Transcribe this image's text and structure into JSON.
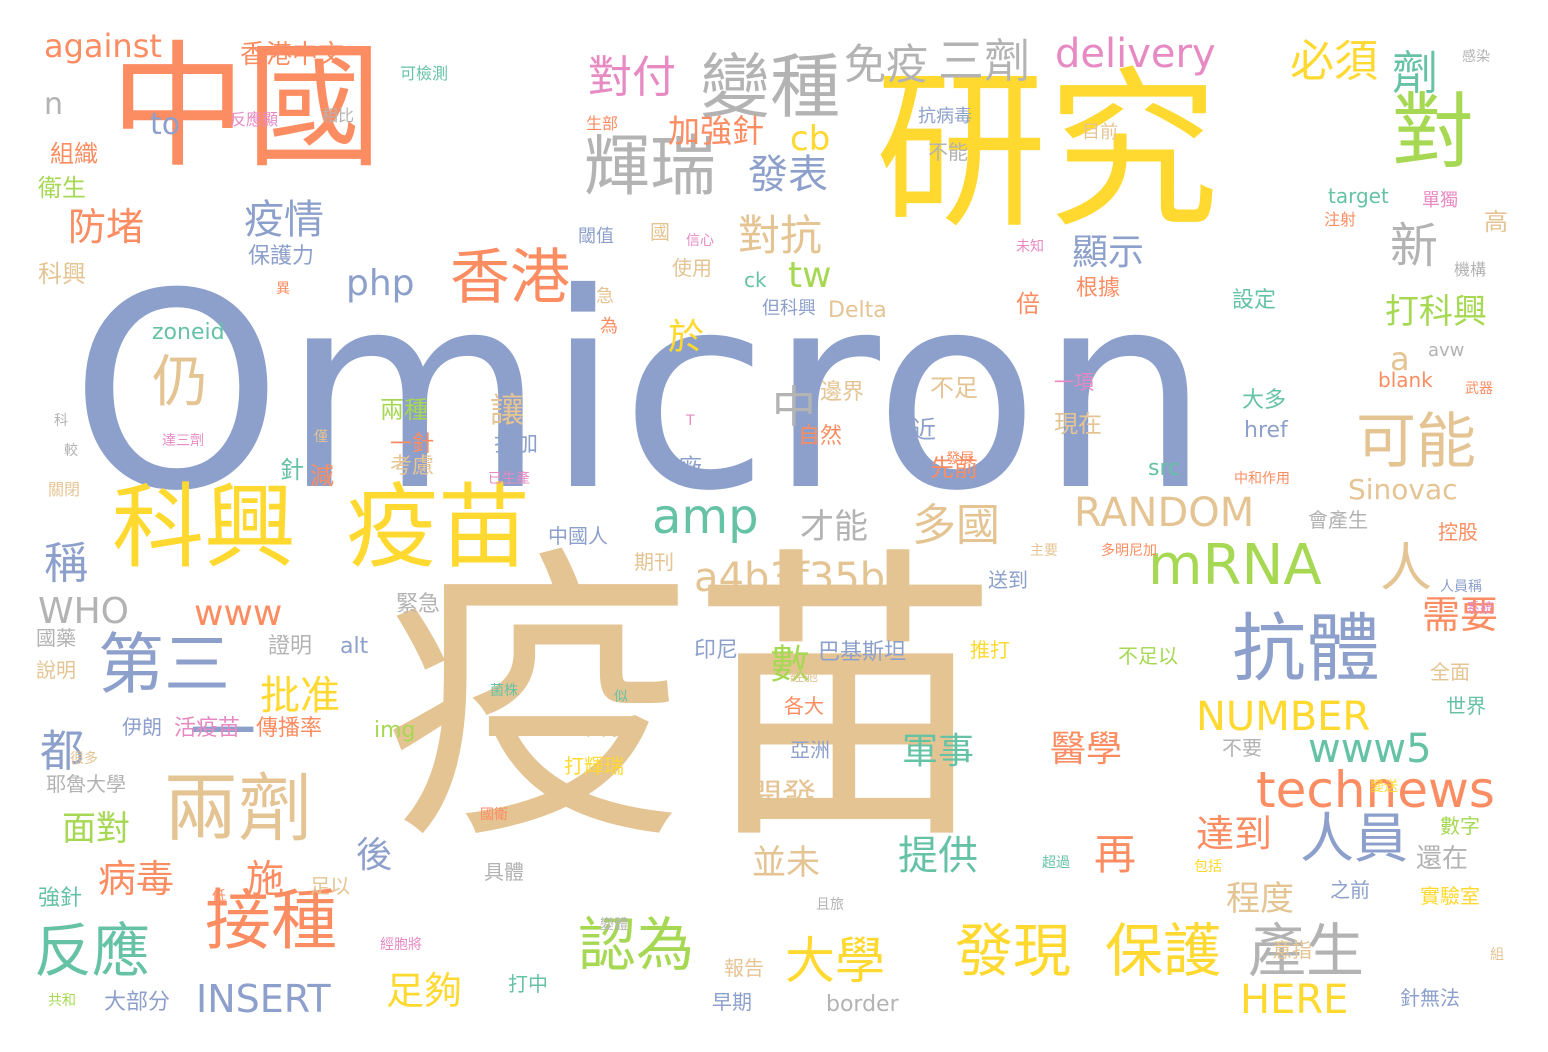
{
  "palette": {
    "orange": "#fc8d62",
    "yellow": "#ffd92f",
    "blue": "#8da0cb",
    "tan": "#e5c494",
    "green": "#66c2a5",
    "lime": "#a6d854",
    "pink": "#e78ac3",
    "gray": "#b3b3b3"
  },
  "words": [
    {
      "text": "Omicron",
      "color": "blue"
    },
    {
      "text": "疫苗",
      "color": "tan"
    },
    {
      "text": "研究",
      "color": "yellow"
    },
    {
      "text": "中國",
      "color": "orange"
    },
    {
      "text": "科興",
      "color": "yellow"
    },
    {
      "text": "疫苗",
      "color": "yellow"
    },
    {
      "text": "兩劑",
      "color": "tan"
    },
    {
      "text": "接種",
      "color": "orange"
    },
    {
      "text": "第三",
      "color": "blue"
    },
    {
      "text": "抗體",
      "color": "blue"
    },
    {
      "text": "對",
      "color": "lime"
    },
    {
      "text": "變種",
      "color": "gray"
    },
    {
      "text": "輝瑞",
      "color": "gray"
    },
    {
      "text": "香港",
      "color": "orange"
    },
    {
      "text": "仍",
      "color": "tan"
    },
    {
      "text": "可能",
      "color": "tan"
    },
    {
      "text": "mRNA",
      "color": "lime"
    },
    {
      "text": "發現",
      "color": "yellow"
    },
    {
      "text": "保護",
      "color": "yellow"
    },
    {
      "text": "反應",
      "color": "green"
    },
    {
      "text": "認為",
      "color": "lime"
    },
    {
      "text": "產生",
      "color": "gray"
    },
    {
      "text": "人員",
      "color": "blue"
    },
    {
      "text": "大學",
      "color": "yellow"
    },
    {
      "text": "amp",
      "color": "green"
    },
    {
      "text": "technews",
      "color": "orange"
    },
    {
      "text": "人",
      "color": "tan"
    },
    {
      "text": "新",
      "color": "gray"
    },
    {
      "text": "中",
      "color": "gray"
    },
    {
      "text": "一",
      "color": "blue"
    },
    {
      "text": "delivery",
      "color": "pink"
    },
    {
      "text": "三劑",
      "color": "gray"
    },
    {
      "text": "必須",
      "color": "yellow"
    },
    {
      "text": "劑",
      "color": "green"
    },
    {
      "text": "對付",
      "color": "pink"
    },
    {
      "text": "免疫",
      "color": "gray"
    },
    {
      "text": "against",
      "color": "orange"
    },
    {
      "text": "香港中文",
      "color": "orange"
    },
    {
      "text": "防堵",
      "color": "orange"
    },
    {
      "text": "疫情",
      "color": "blue"
    },
    {
      "text": "發表",
      "color": "blue"
    },
    {
      "text": "對抗",
      "color": "tan"
    },
    {
      "text": "加強針",
      "color": "orange"
    },
    {
      "text": "cb",
      "color": "yellow"
    },
    {
      "text": "tw",
      "color": "lime"
    },
    {
      "text": "php",
      "color": "blue"
    },
    {
      "text": "顯示",
      "color": "blue"
    },
    {
      "text": "打科興",
      "color": "lime"
    },
    {
      "text": "於",
      "color": "yellow"
    },
    {
      "text": "a",
      "color": "tan"
    },
    {
      "text": "多國",
      "color": "tan"
    },
    {
      "text": "才能",
      "color": "gray"
    },
    {
      "text": "RANDOM",
      "color": "tan"
    },
    {
      "text": "Sinovac",
      "color": "tan"
    },
    {
      "text": "a4b3f35b",
      "color": "tan"
    },
    {
      "text": "www",
      "color": "orange"
    },
    {
      "text": "WHO",
      "color": "gray"
    },
    {
      "text": "稱",
      "color": "blue"
    },
    {
      "text": "都",
      "color": "blue"
    },
    {
      "text": "批准",
      "color": "yellow"
    },
    {
      "text": "數",
      "color": "lime"
    },
    {
      "text": "www5",
      "color": "green"
    },
    {
      "text": "NUMBER",
      "color": "yellow"
    },
    {
      "text": "需要",
      "color": "orange"
    },
    {
      "text": "軍事",
      "color": "green"
    },
    {
      "text": "醫學",
      "color": "orange"
    },
    {
      "text": "提供",
      "color": "green"
    },
    {
      "text": "再",
      "color": "orange"
    },
    {
      "text": "開發",
      "color": "tan"
    },
    {
      "text": "並未",
      "color": "tan"
    },
    {
      "text": "達到",
      "color": "orange"
    },
    {
      "text": "程度",
      "color": "tan"
    },
    {
      "text": "還在",
      "color": "gray"
    },
    {
      "text": "面對",
      "color": "lime"
    },
    {
      "text": "病毒",
      "color": "orange"
    },
    {
      "text": "施",
      "color": "orange"
    },
    {
      "text": "後",
      "color": "blue"
    },
    {
      "text": "足夠",
      "color": "yellow"
    },
    {
      "text": "INSERT",
      "color": "blue"
    },
    {
      "text": "HERE",
      "color": "yellow"
    },
    {
      "text": "n",
      "color": "gray"
    },
    {
      "text": "to",
      "color": "blue"
    },
    {
      "text": "組織",
      "color": "orange"
    },
    {
      "text": "衛生",
      "color": "lime"
    },
    {
      "text": "科興",
      "color": "tan"
    },
    {
      "text": "保護力",
      "color": "blue"
    },
    {
      "text": "zoneid",
      "color": "green"
    },
    {
      "text": "可檢測",
      "color": "green"
    },
    {
      "text": "反應顯",
      "color": "pink"
    },
    {
      "text": "相比",
      "color": "gray"
    },
    {
      "text": "抗病毒",
      "color": "blue"
    },
    {
      "text": "感染",
      "color": "gray"
    },
    {
      "text": "生部",
      "color": "orange"
    },
    {
      "text": "目前",
      "color": "tan"
    },
    {
      "text": "不能",
      "color": "gray"
    },
    {
      "text": "國",
      "color": "tan"
    },
    {
      "text": "閾值",
      "color": "blue"
    },
    {
      "text": "使用",
      "color": "tan"
    },
    {
      "text": "target",
      "color": "green"
    },
    {
      "text": "單獨",
      "color": "pink"
    },
    {
      "text": "注射",
      "color": "orange"
    },
    {
      "text": "高",
      "color": "tan"
    },
    {
      "text": "ck",
      "color": "green"
    },
    {
      "text": "但科興",
      "color": "blue"
    },
    {
      "text": "Delta",
      "color": "tan"
    },
    {
      "text": "倍",
      "color": "orange"
    },
    {
      "text": "根據",
      "color": "orange"
    },
    {
      "text": "設定",
      "color": "green"
    },
    {
      "text": "機構",
      "color": "gray"
    },
    {
      "text": "avw",
      "color": "gray"
    },
    {
      "text": "blank",
      "color": "orange"
    },
    {
      "text": "邊界",
      "color": "tan"
    },
    {
      "text": "不足",
      "color": "tan"
    },
    {
      "text": "一項",
      "color": "pink"
    },
    {
      "text": "大多",
      "color": "green"
    },
    {
      "text": "武器",
      "color": "orange"
    },
    {
      "text": "兩種",
      "color": "lime"
    },
    {
      "text": "讓",
      "color": "tan"
    },
    {
      "text": "一針",
      "color": "orange"
    },
    {
      "text": "打加",
      "color": "blue"
    },
    {
      "text": "自然",
      "color": "orange"
    },
    {
      "text": "近",
      "color": "blue"
    },
    {
      "text": "發展",
      "color": "orange"
    },
    {
      "text": "現在",
      "color": "tan"
    },
    {
      "text": "href",
      "color": "blue"
    },
    {
      "text": "src",
      "color": "green"
    },
    {
      "text": "中和作用",
      "color": "orange"
    },
    {
      "text": "針",
      "color": "green"
    },
    {
      "text": "減",
      "color": "orange"
    },
    {
      "text": "考慮",
      "color": "tan"
    },
    {
      "text": "已生產",
      "color": "pink"
    },
    {
      "text": "先前",
      "color": "orange"
    },
    {
      "text": "廠",
      "color": "blue"
    },
    {
      "text": "中國人",
      "color": "blue"
    },
    {
      "text": "會產生",
      "color": "gray"
    },
    {
      "text": "控股",
      "color": "orange"
    },
    {
      "text": "期刊",
      "color": "tan"
    },
    {
      "text": "送到",
      "color": "blue"
    },
    {
      "text": "多明尼加",
      "color": "orange"
    },
    {
      "text": "緊急",
      "color": "gray"
    },
    {
      "text": "主要",
      "color": "tan"
    },
    {
      "text": "人員稱",
      "color": "blue"
    },
    {
      "text": "系統",
      "color": "pink"
    },
    {
      "text": "國藥",
      "color": "gray"
    },
    {
      "text": "證明",
      "color": "gray"
    },
    {
      "text": "alt",
      "color": "blue"
    },
    {
      "text": "印尼",
      "color": "blue"
    },
    {
      "text": "巴基斯坦",
      "color": "blue"
    },
    {
      "text": "推打",
      "color": "yellow"
    },
    {
      "text": "不足以",
      "color": "lime"
    },
    {
      "text": "全面",
      "color": "tan"
    },
    {
      "text": "說明",
      "color": "tan"
    },
    {
      "text": "伊朗",
      "color": "blue"
    },
    {
      "text": "活疫苗",
      "color": "pink"
    },
    {
      "text": "傳播率",
      "color": "orange"
    },
    {
      "text": "img",
      "color": "lime"
    },
    {
      "text": "各大",
      "color": "orange"
    },
    {
      "text": "世界",
      "color": "green"
    },
    {
      "text": "國家",
      "color": "tan"
    },
    {
      "text": "亞洲",
      "color": "blue"
    },
    {
      "text": "不要",
      "color": "gray"
    },
    {
      "text": "耶魯大學",
      "color": "gray"
    },
    {
      "text": "打輝瑞",
      "color": "yellow"
    },
    {
      "text": "數字",
      "color": "lime"
    },
    {
      "text": "具體",
      "color": "gray"
    },
    {
      "text": "之前",
      "color": "blue"
    },
    {
      "text": "實驗室",
      "color": "yellow"
    },
    {
      "text": "強針",
      "color": "green"
    },
    {
      "text": "足以",
      "color": "tan"
    },
    {
      "text": "且旅",
      "color": "gray"
    },
    {
      "text": "超過",
      "color": "green"
    },
    {
      "text": "包括",
      "color": "yellow"
    },
    {
      "text": "報告",
      "color": "tan"
    },
    {
      "text": "意指",
      "color": "tan"
    },
    {
      "text": "打中",
      "color": "green"
    },
    {
      "text": "早期",
      "color": "blue"
    },
    {
      "text": "大部分",
      "color": "blue"
    },
    {
      "text": "border",
      "color": "gray"
    },
    {
      "text": "針無法",
      "color": "blue"
    },
    {
      "text": "共和",
      "color": "lime"
    },
    {
      "text": "經胞將",
      "color": "pink"
    },
    {
      "text": "變體",
      "color": "gray"
    },
    {
      "text": "組",
      "color": "tan"
    },
    {
      "text": "科",
      "color": "gray"
    },
    {
      "text": "較",
      "color": "gray"
    },
    {
      "text": "達三劑",
      "color": "pink"
    },
    {
      "text": "僅",
      "color": "tan"
    },
    {
      "text": "T",
      "color": "pink"
    },
    {
      "text": "關閉",
      "color": "tan"
    },
    {
      "text": "很多",
      "color": "tan"
    },
    {
      "text": "經胞",
      "color": "tan"
    },
    {
      "text": "菌株",
      "color": "green"
    },
    {
      "text": "似",
      "color": "green"
    },
    {
      "text": "國衛",
      "color": "orange"
    },
    {
      "text": "變送",
      "color": "yellow"
    },
    {
      "text": "低",
      "color": "orange"
    },
    {
      "text": "急",
      "color": "tan"
    },
    {
      "text": "為",
      "color": "orange"
    },
    {
      "text": "信心",
      "color": "pink"
    },
    {
      "text": "未知",
      "color": "pink"
    },
    {
      "text": "異",
      "color": "orange"
    }
  ]
}
